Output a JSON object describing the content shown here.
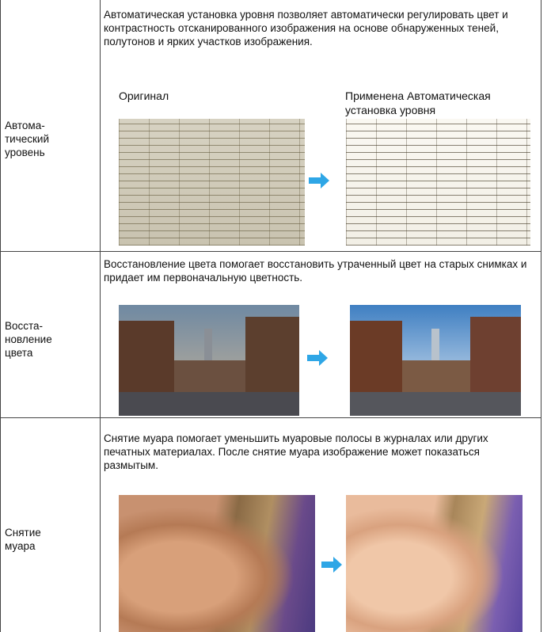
{
  "table": {
    "rows": [
      {
        "label": "Автома-\nтический\nуровень",
        "description": "Автоматическая установка уровня позволяет автоматически регулировать цвет и контрастность отсканированного изображения на основе обнаруженных теней, полутонов и ярких участков изображения.",
        "captions": [
          "Оригинал",
          "Применена Автоматическая\nустановка уровня"
        ]
      },
      {
        "label": "Восста-\nновление\nцвета",
        "description": "Восстановление цвета помогает восстановить утраченный цвет на старых снимках и придает им первоначальную цветность."
      },
      {
        "label": "Снятие\nмуара",
        "description": "Снятие муара помогает уменьшить муаровые полосы в журналах или других печатных материалах. После снятие муара изображение может показаться размытым."
      }
    ]
  }
}
